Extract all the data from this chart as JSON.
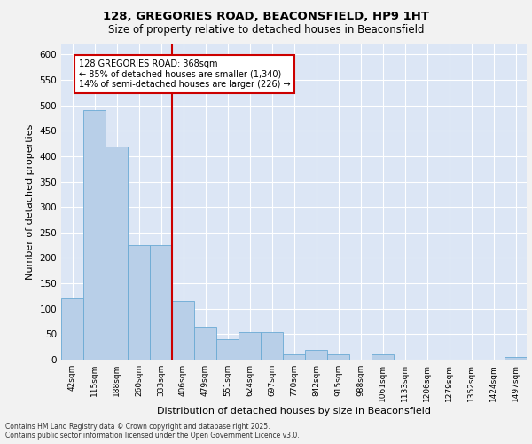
{
  "title1": "128, GREGORIES ROAD, BEACONSFIELD, HP9 1HT",
  "title2": "Size of property relative to detached houses in Beaconsfield",
  "xlabel": "Distribution of detached houses by size in Beaconsfield",
  "ylabel": "Number of detached properties",
  "categories": [
    "42sqm",
    "115sqm",
    "188sqm",
    "260sqm",
    "333sqm",
    "406sqm",
    "479sqm",
    "551sqm",
    "624sqm",
    "697sqm",
    "770sqm",
    "842sqm",
    "915sqm",
    "988sqm",
    "1061sqm",
    "1133sqm",
    "1206sqm",
    "1279sqm",
    "1352sqm",
    "1424sqm",
    "1497sqm"
  ],
  "values": [
    120,
    490,
    420,
    225,
    225,
    115,
    65,
    40,
    55,
    55,
    10,
    20,
    10,
    0,
    10,
    0,
    0,
    0,
    0,
    0,
    5
  ],
  "bar_color": "#b8cfe8",
  "bar_edge_color": "#6aaad4",
  "vertical_line_x": 4.5,
  "annotation_text": "128 GREGORIES ROAD: 368sqm\n← 85% of detached houses are smaller (1,340)\n14% of semi-detached houses are larger (226) →",
  "annotation_box_color": "#ffffff",
  "annotation_box_edge_color": "#cc0000",
  "vline_color": "#cc0000",
  "figure_bg_color": "#f2f2f2",
  "plot_bg_color": "#dce6f5",
  "footer_text": "Contains HM Land Registry data © Crown copyright and database right 2025.\nContains public sector information licensed under the Open Government Licence v3.0.",
  "ylim": [
    0,
    620
  ],
  "yticks": [
    0,
    50,
    100,
    150,
    200,
    250,
    300,
    350,
    400,
    450,
    500,
    550,
    600
  ]
}
